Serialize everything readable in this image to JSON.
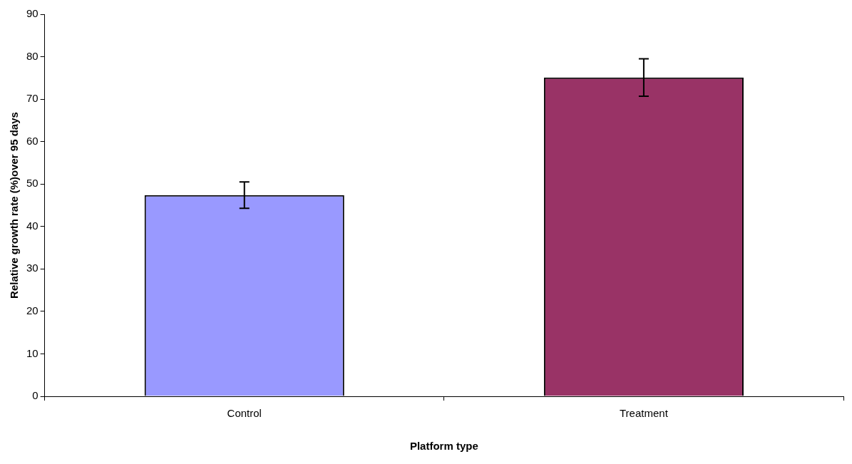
{
  "chart_data": {
    "type": "bar",
    "categories": [
      "Control",
      "Treatment"
    ],
    "values": [
      47.4,
      75.1
    ],
    "errors": [
      3.1,
      4.4
    ],
    "colors": [
      "#9999ff",
      "#993366"
    ],
    "xlabel": "Platform type",
    "ylabel": "Relative growth rate (%)over 95 days",
    "ylim": [
      0,
      90
    ],
    "yticks": [
      0,
      10,
      20,
      30,
      40,
      50,
      60,
      70,
      80,
      90
    ]
  }
}
